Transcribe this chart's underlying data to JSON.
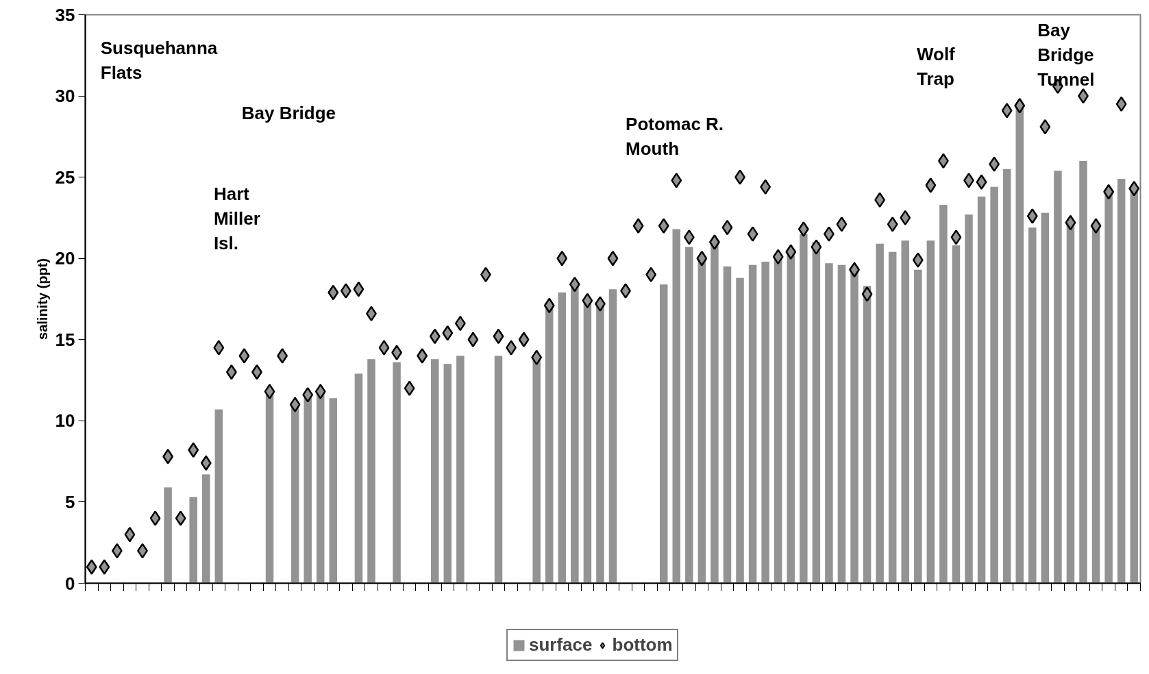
{
  "chart_data": {
    "type": "bar",
    "ylabel": "salinity (ppt)",
    "categories": [
      null,
      null,
      null,
      null,
      null,
      null,
      null,
      null,
      null,
      null,
      null,
      null,
      null,
      null,
      null,
      null,
      null,
      null,
      null,
      null,
      null,
      null,
      null,
      null,
      null,
      null,
      null,
      null,
      null,
      null,
      null,
      null,
      null,
      null,
      null,
      null,
      null,
      null,
      null,
      null,
      null,
      null,
      null,
      null,
      null,
      null,
      null,
      null,
      null,
      null,
      null,
      null,
      null,
      null,
      null,
      null,
      null,
      null,
      null,
      null,
      null,
      null,
      null,
      null,
      null,
      null,
      null,
      null,
      null,
      null,
      null,
      null,
      null,
      null,
      null,
      null,
      null,
      null,
      null,
      null,
      null,
      null,
      null
    ],
    "series": [
      {
        "name": "surface",
        "color": "#939393",
        "values": [
          null,
          null,
          null,
          null,
          null,
          null,
          5.9,
          null,
          5.3,
          6.7,
          10.7,
          null,
          null,
          null,
          11.8,
          null,
          11.0,
          11.6,
          11.8,
          11.4,
          null,
          12.9,
          13.8,
          null,
          13.6,
          null,
          null,
          13.8,
          13.5,
          14.0,
          null,
          null,
          14.0,
          null,
          null,
          13.9,
          17.0,
          17.9,
          18.3,
          17.3,
          17.2,
          18.1,
          null,
          null,
          null,
          18.4,
          21.8,
          20.7,
          20.1,
          21.0,
          19.5,
          18.8,
          19.6,
          19.8,
          20.0,
          20.2,
          21.5,
          21.0,
          19.7,
          19.6,
          19.3,
          18.3,
          20.9,
          20.4,
          21.1,
          19.3,
          21.1,
          23.3,
          20.8,
          22.7,
          23.8,
          24.4,
          25.5,
          29.4,
          21.9,
          22.8,
          25.4,
          22.1,
          26.0,
          21.9,
          24.0,
          24.9,
          24.2
        ]
      },
      {
        "name": "bottom",
        "type": "scatter",
        "marker": "diamond",
        "color": "#939393",
        "values": [
          1.0,
          1.0,
          2.0,
          3.0,
          2.0,
          4.0,
          7.8,
          4.0,
          8.2,
          7.4,
          14.5,
          13.0,
          14.0,
          13.0,
          11.8,
          14.0,
          11.0,
          11.6,
          11.8,
          17.9,
          18.0,
          18.1,
          16.6,
          14.5,
          14.2,
          12.0,
          14.0,
          15.2,
          15.4,
          16.0,
          15.0,
          19.0,
          15.2,
          14.5,
          15.0,
          13.9,
          17.1,
          20.0,
          18.4,
          17.4,
          17.2,
          20.0,
          18.0,
          22.0,
          19.0,
          22.0,
          24.8,
          21.3,
          20.0,
          21.0,
          21.9,
          25.0,
          21.5,
          24.4,
          20.1,
          20.4,
          21.8,
          20.7,
          21.5,
          22.1,
          19.3,
          17.8,
          23.6,
          22.1,
          22.5,
          19.9,
          24.5,
          26.0,
          21.3,
          24.8,
          24.7,
          25.8,
          29.1,
          29.4,
          22.6,
          28.1,
          30.6,
          22.2,
          30.0,
          22.0,
          24.1,
          29.5,
          24.3
        ]
      }
    ],
    "ylim": [
      0,
      35
    ],
    "yticks": [
      0,
      5,
      10,
      15,
      20,
      25,
      30,
      35
    ],
    "grid": false,
    "legend": "bottom",
    "tick_labels": "y",
    "annotations": [
      "Susquehanna\nFlats",
      "Hart\nMiller\nIsl.",
      "Bay Bridge",
      "Potomac  R.\nMouth",
      "Wolf\nTrap",
      "Bay\nBridge\nTunnel"
    ]
  }
}
